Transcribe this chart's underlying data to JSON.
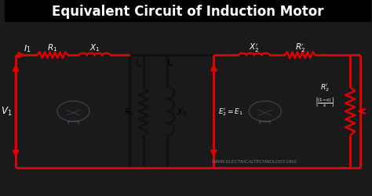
{
  "title": "Equivalent Circuit of Induction Motor",
  "bg_color": "#1a1a1a",
  "red_color": "#dd0000",
  "black_wire": "#111111",
  "watermark": "WWW.ELECTRICALTECHNOLOGY.ORG"
}
